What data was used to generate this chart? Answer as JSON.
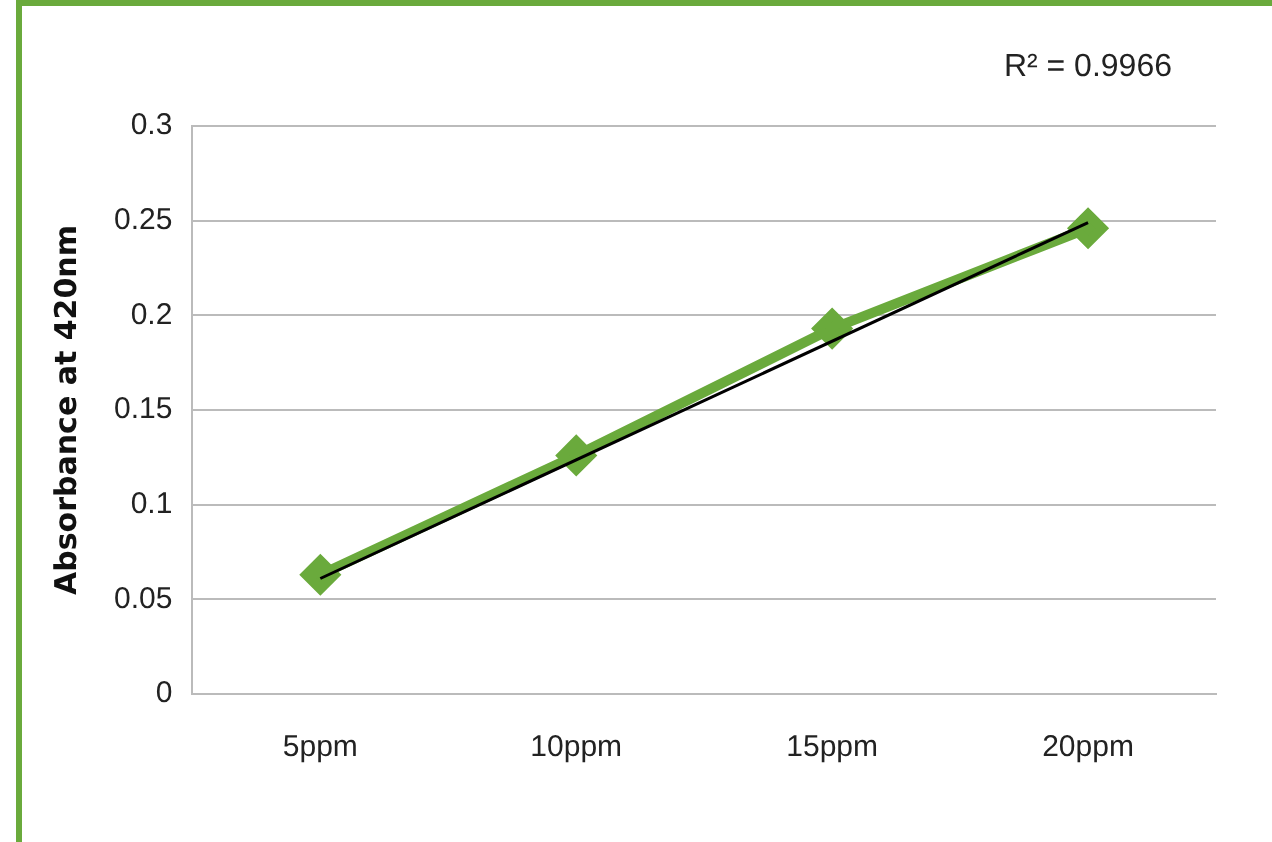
{
  "chart_data": {
    "type": "line",
    "ylabel": "Absorbance at 420nm",
    "categories": [
      "5ppm",
      "10ppm",
      "15ppm",
      "20ppm"
    ],
    "series": [
      {
        "color": "#6aaa3c",
        "values": [
          0.063,
          0.126,
          0.193,
          0.246
        ],
        "marker": "diamond"
      },
      {
        "type": "line",
        "color": "#000000",
        "x": [
          "5ppm",
          "20ppm"
        ],
        "values": [
          0.061,
          0.249
        ],
        "marker": "none"
      }
    ],
    "ylim": [
      0,
      0.3
    ],
    "yticks": [
      0,
      0.05,
      0.1,
      0.15,
      0.2,
      0.25,
      0.3
    ],
    "grid": "y",
    "legend": false,
    "annotations": [
      "R² = 0.9966"
    ]
  }
}
